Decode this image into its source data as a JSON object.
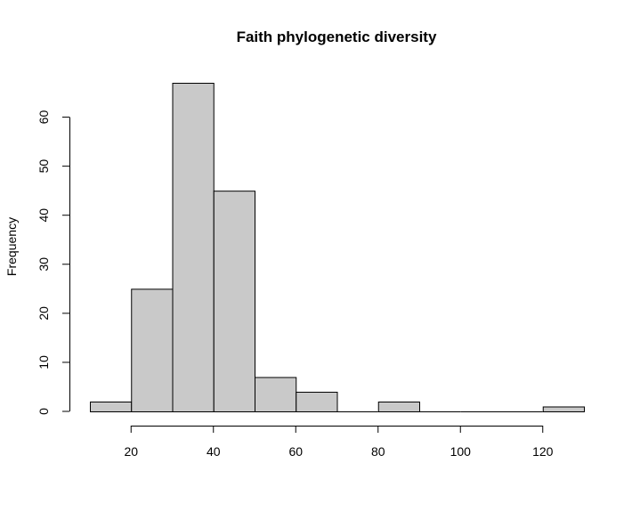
{
  "chart_data": {
    "type": "bar",
    "title": "Faith phylogenetic diversity",
    "xlabel": "",
    "ylabel": "Frequency",
    "bins": [
      {
        "from": 10,
        "to": 20,
        "count": 2
      },
      {
        "from": 20,
        "to": 30,
        "count": 25
      },
      {
        "from": 30,
        "to": 40,
        "count": 67
      },
      {
        "from": 40,
        "to": 50,
        "count": 45
      },
      {
        "from": 50,
        "to": 60,
        "count": 7
      },
      {
        "from": 60,
        "to": 70,
        "count": 4
      },
      {
        "from": 70,
        "to": 80,
        "count": 0
      },
      {
        "from": 80,
        "to": 90,
        "count": 2
      },
      {
        "from": 90,
        "to": 100,
        "count": 0
      },
      {
        "from": 100,
        "to": 110,
        "count": 0
      },
      {
        "from": 110,
        "to": 120,
        "count": 0
      },
      {
        "from": 120,
        "to": 130,
        "count": 1
      }
    ],
    "xlim": [
      10,
      130
    ],
    "ylim": [
      0,
      67
    ],
    "x_ticks": [
      20,
      40,
      60,
      80,
      100,
      120
    ],
    "y_ticks": [
      0,
      10,
      20,
      30,
      40,
      50,
      60
    ],
    "grid": false,
    "bar_color": "#c9c9c9"
  }
}
